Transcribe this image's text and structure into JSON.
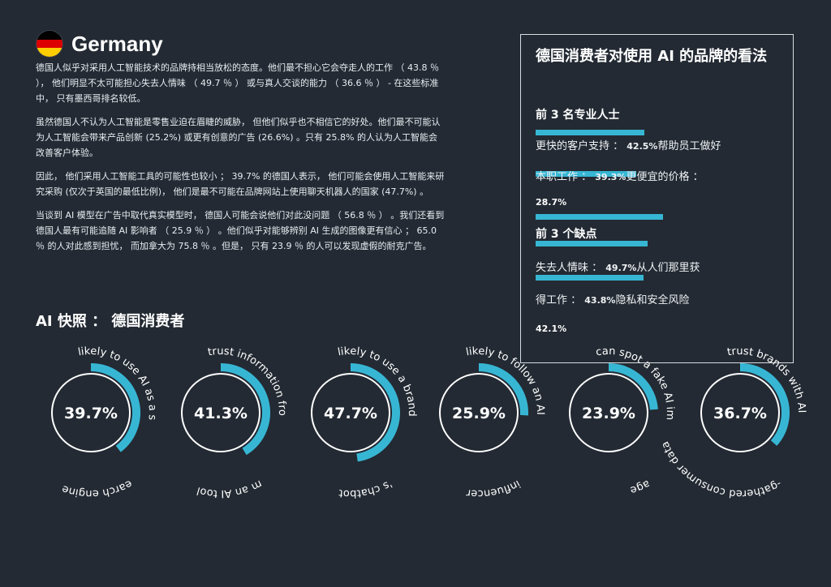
{
  "header": {
    "country": "Germany",
    "flag_colors": [
      "#000000",
      "#dd0000",
      "#ffce00"
    ]
  },
  "paragraphs": [
    "德国人似乎对采用人工智能技术的品牌持相当放松的态度。他们最不担心它会夺走人的工作 （ 43.8 ％ ）， 他们明显不太可能担心失去人情味 （ 49.7 ％ ） 或与真人交谈的能力 （ 36.6 ％ ） - 在这些标准中， 只有墨西哥排名较低。",
    "虽然德国人不认为人工智能是零售业迫在眉睫的威胁， 但他们似乎也不相信它的好处。他们最不可能认为人工智能会带来产品创新 (25.2%) 或更有创意的广告 (26.6%) 。只有 25.8% 的人认为人工智能会改善客户体验。",
    "因此， 他们采用人工智能工具的可能性也较小 ； 39.7% 的德国人表示， 他们可能会使用人工智能来研究采购 (仅次于英国的最低比例)， 他们是最不可能在品牌网站上使用聊天机器人的国家 (47.7%) 。",
    "当谈到 AI 模型在广告中取代真实模型时， 德国人可能会说他们对此没问题 （ 56.8 ％ ） 。我们还看到德国人最有可能追随 AI 影响者 （ 25.9 ％ ） 。他们似乎对能够辨别 AI 生成的图像更有信心 ； 65.0 ％ 的人对此感到担忧， 而加拿大为 75.8 ％ 。但是， 只有 23.9 ％ 的人可以发现虚假的耐克广告。"
  ],
  "snapshot_title": "AI 快照 ： 德国消费者",
  "panel": {
    "title": "德国消费者对使用 AI 的品牌的看法",
    "pros_heading": "前 3 名专业人士",
    "pros_line1": "更快的客户支持 ：",
    "pros_line1_val": "42.5%",
    "pros_line1_tail": "帮助员工做好",
    "pros_line2": "本职工作 ：",
    "pros_line2_val": "39.3%",
    "pros_line2_tail": "更便宜的价格 ：",
    "pros_line3_val": "28.7%",
    "cons_heading": "前 3 个缺点",
    "cons_line1": "失去人情味 ：",
    "cons_line1_val": "49.7%",
    "cons_line1_tail": "从人们那里获",
    "cons_line2": "得工作 ：",
    "cons_line2_val": "43.8%",
    "cons_line2_tail": "隐私和安全风险",
    "cons_line3_val": "42.1%",
    "bar_color": "#37b6d4"
  },
  "chart_data": {
    "type": "gauge",
    "accent": "#37b6d4",
    "items": [
      {
        "value": 39.7,
        "label": "39.7%",
        "top_text": "likely to use AI as a s",
        "bottom_text": "earch engine"
      },
      {
        "value": 41.3,
        "label": "41.3%",
        "top_text": "trust information fro",
        "bottom_text": "m an AI tool"
      },
      {
        "value": 47.7,
        "label": "47.7%",
        "top_text": "likely to use a brand",
        "bottom_text": "'s chatbot"
      },
      {
        "value": 25.9,
        "label": "25.9%",
        "top_text": "likely to follow an AI",
        "bottom_text": "influencer"
      },
      {
        "value": 23.9,
        "label": "23.9%",
        "top_text": "can spot a fake AI im",
        "bottom_text": "age"
      },
      {
        "value": 36.7,
        "label": "36.7%",
        "top_text": "trust brands with AI",
        "bottom_text": "-gathered consumer data"
      }
    ]
  }
}
